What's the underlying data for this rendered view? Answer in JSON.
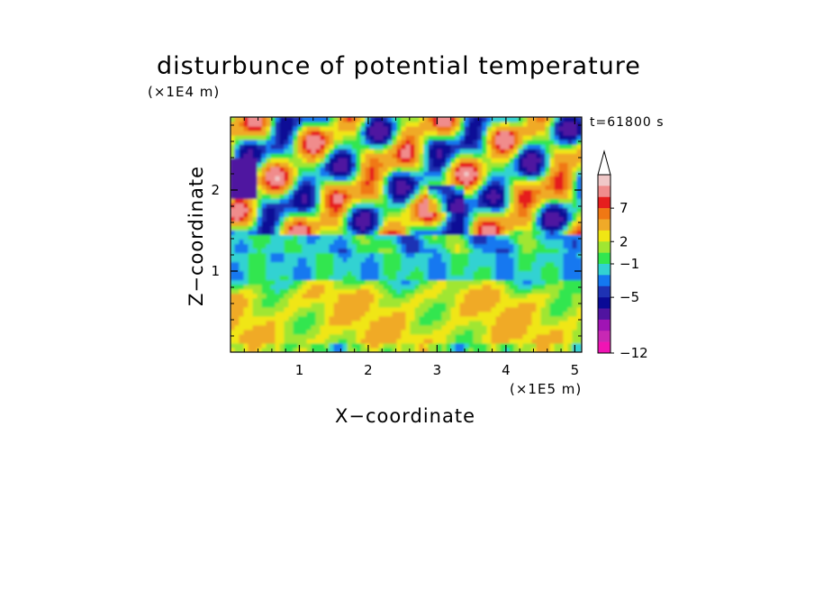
{
  "chart_data": {
    "type": "heatmap",
    "title": "disturbunce of potential temperature",
    "time_label": "t=61800 s",
    "xlabel": "X−coordinate",
    "ylabel": "Z−coordinate",
    "x_unit": "(×1E5 m)",
    "y_unit": "(×1E4 m)",
    "xlim": [
      0,
      5.1
    ],
    "ylim": [
      0,
      2.9
    ],
    "x_ticks": [
      "1",
      "2",
      "3",
      "4",
      "5"
    ],
    "y_ticks": [
      "1",
      "2"
    ],
    "colorbar": {
      "labels": [
        "7",
        "2",
        "−1",
        "−5",
        "−12"
      ],
      "colors_top_to_bottom": [
        "#f0c8c8",
        "#f08c8c",
        "#e61e1e",
        "#f07814",
        "#f0aa28",
        "#f0e614",
        "#a0e632",
        "#32e650",
        "#32d2d2",
        "#1478f0",
        "#1e32b4",
        "#0a0a96",
        "#5014a0",
        "#a014b4",
        "#c828b4",
        "#f014b4"
      ]
    },
    "field_description_bands": [
      {
        "z_range": [
          0,
          0.9
        ],
        "dominant_value": "2 to 4",
        "color": "#f0aa28"
      },
      {
        "z_range": [
          0.9,
          1.4
        ],
        "dominant_value": "-1 to 0",
        "color": "#32e650"
      },
      {
        "z_range": [
          1.4,
          2.9
        ],
        "dominant_value": "mixed -5 to 7",
        "color": "#f07814"
      }
    ]
  }
}
